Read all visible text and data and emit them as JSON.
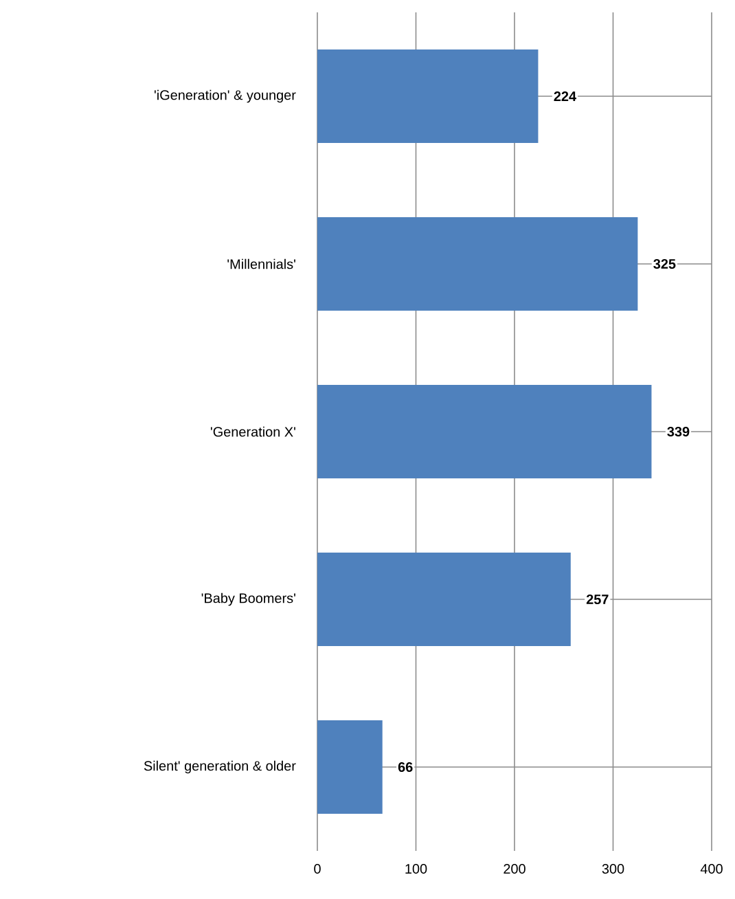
{
  "chart_data": {
    "type": "bar",
    "orientation": "horizontal",
    "categories": [
      "'iGeneration' & younger",
      "'Millennials'",
      "'Generation X'",
      "'Baby Boomers'",
      "Silent' generation & older"
    ],
    "values": [
      224,
      325,
      339,
      257,
      66
    ],
    "color": "#4f81bd",
    "xlim": [
      0,
      400
    ],
    "xticks": [
      0,
      100,
      200,
      300,
      400
    ],
    "grid": true,
    "data_labels": true
  }
}
